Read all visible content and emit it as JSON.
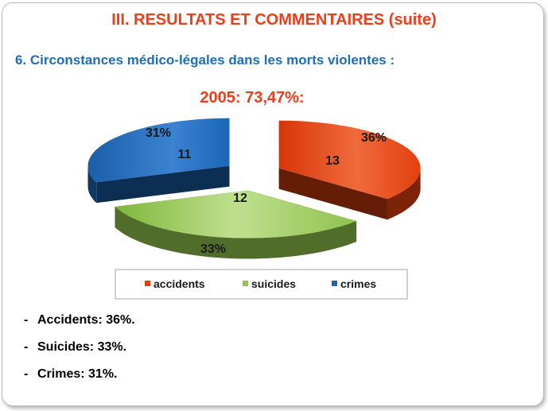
{
  "slide": {
    "title": "III. RESULTATS ET COMMENTAIRES (suite)",
    "subtitle": "6. Circonstances médico-légales dans les morts violentes :"
  },
  "chart_data": {
    "type": "pie",
    "title": "2005: 73,47%:",
    "categories": [
      "accidents",
      "suicides",
      "crimes"
    ],
    "values": [
      13,
      12,
      11
    ],
    "percent_labels": [
      "36%",
      "33%",
      "31%"
    ],
    "exploded": true,
    "three_d": true,
    "legend": "bottom",
    "colors": [
      "#e2400e",
      "#92c64c",
      "#1c66b8"
    ]
  },
  "summary": [
    {
      "dash": "-",
      "text": "Accidents: 36%."
    },
    {
      "dash": "-",
      "text": "Suicides: 33%."
    },
    {
      "dash": "-",
      "text": "Crimes: 31%."
    }
  ]
}
